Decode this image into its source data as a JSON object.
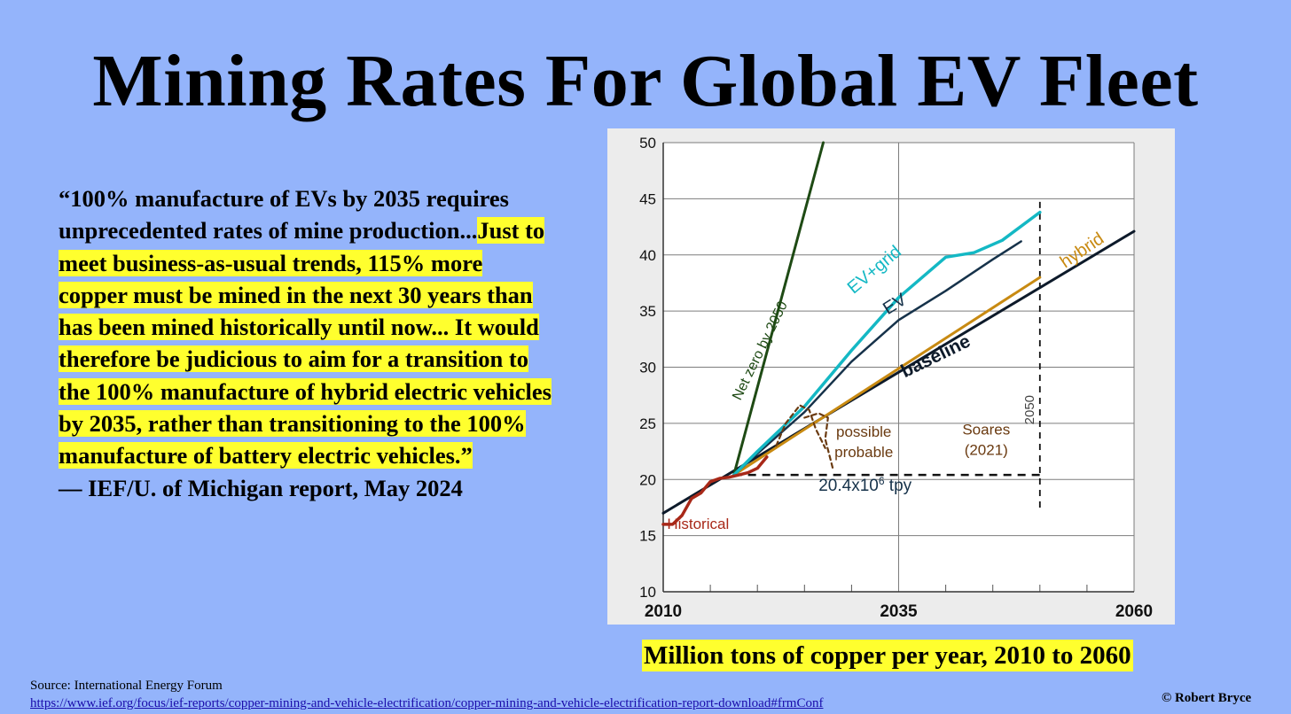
{
  "title": "Mining Rates For Global EV Fleet",
  "quote": {
    "plain": "“100% manufacture of EVs by 2035 requires unprecedented rates of mine production...",
    "highlighted": "Just to meet business-as-usual trends, 115% more copper must be mined in the next 30 years than has been mined historically until now... It would therefore be judicious to aim for a transition to the 100% manufacture of hybrid electric vehicles by 2035, rather than transitioning to the 100% manufacture of battery electric vehicles.”",
    "attribution": "— IEF/U. of Michigan report, May 2024"
  },
  "caption": "Million tons of copper per year, 2010 to 2060",
  "source": {
    "label": "Source:",
    "name": "International Energy Forum",
    "url": "https://www.ief.org/focus/ief-reports/copper-mining-and-vehicle-electrification/copper-mining-and-vehicle-electrification-report-download#frmConf"
  },
  "copyright": "© Robert Bryce",
  "chart_data": {
    "type": "line",
    "xlim": [
      2010,
      2060
    ],
    "ylim": [
      10,
      50
    ],
    "x_ticks": [
      2010,
      2035,
      2060
    ],
    "y_ticks": [
      10,
      15,
      20,
      25,
      30,
      35,
      40,
      45,
      50
    ],
    "grid": true,
    "series": [
      {
        "name": "Historical",
        "color": "#a82818",
        "points": [
          [
            2010,
            16
          ],
          [
            2011,
            16
          ],
          [
            2012,
            16.8
          ],
          [
            2013,
            18.3
          ],
          [
            2014,
            18.8
          ],
          [
            2015,
            19.8
          ],
          [
            2016,
            20.1
          ],
          [
            2017,
            20.2
          ],
          [
            2018,
            20.4
          ],
          [
            2019,
            20.6
          ],
          [
            2020,
            21
          ],
          [
            2021,
            22
          ]
        ]
      },
      {
        "name": "Net zero by 2050",
        "color": "#1e4a14",
        "points": [
          [
            2017.5,
            20.4
          ],
          [
            2027,
            50
          ]
        ]
      },
      {
        "name": "EV+grid",
        "color": "#14b8c4",
        "points": [
          [
            2017.5,
            20.4
          ],
          [
            2020,
            22.5
          ],
          [
            2025,
            26.5
          ],
          [
            2030,
            31.5
          ],
          [
            2035,
            36.2
          ],
          [
            2040,
            39.8
          ],
          [
            2043,
            40.2
          ],
          [
            2046,
            41.3
          ],
          [
            2050,
            43.8
          ]
        ]
      },
      {
        "name": "EV",
        "color": "#16324a",
        "points": [
          [
            2017.5,
            20.4
          ],
          [
            2020,
            22.3
          ],
          [
            2025,
            26
          ],
          [
            2030,
            30.5
          ],
          [
            2035,
            34.2
          ],
          [
            2040,
            36.8
          ],
          [
            2045,
            39.6
          ],
          [
            2048,
            41.2
          ]
        ]
      },
      {
        "name": "hybrid",
        "color": "#c88a12",
        "points": [
          [
            2017.5,
            20.4
          ],
          [
            2050,
            38
          ]
        ]
      },
      {
        "name": "baseline",
        "color": "#0d1a2a",
        "points": [
          [
            2010,
            17
          ],
          [
            2060,
            42.1
          ]
        ]
      },
      {
        "name": "possible",
        "color": "#6a3a10",
        "points": [
          [
            2022,
            23
          ],
          [
            2023,
            25
          ],
          [
            2024.5,
            26.6
          ],
          [
            2025.5,
            26.2
          ],
          [
            2026.2,
            24.5
          ],
          [
            2027.2,
            22.8
          ]
        ]
      },
      {
        "name": "probable",
        "color": "#6a3a10",
        "points": [
          [
            2025,
            25.5
          ],
          [
            2026.5,
            25.9
          ],
          [
            2027.5,
            25.5
          ],
          [
            2027.2,
            23.6
          ],
          [
            2028,
            21
          ]
        ]
      }
    ],
    "reference_lines": [
      {
        "label": "20.4x10",
        "superscript": "6",
        "unit": " tpy",
        "orientation": "horizontal",
        "y": 20.4,
        "x_range": [
          2017.5,
          2050
        ]
      },
      {
        "label": "2050",
        "orientation": "vertical",
        "x": 2050,
        "y_range": [
          17.5,
          45
        ]
      }
    ],
    "annotations": [
      {
        "text": "Soares",
        "x": 2044.3,
        "y": 24
      },
      {
        "text": "(2021)",
        "x": 2044.3,
        "y": 22.2
      }
    ]
  }
}
